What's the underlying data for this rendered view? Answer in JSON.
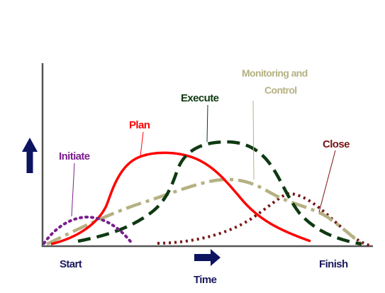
{
  "labels": {
    "initiate": "Initiate",
    "plan": "Plan",
    "execute": "Execute",
    "monitoring_line1": "Monitoring and",
    "monitoring_line2": "Control",
    "close": "Close",
    "start": "Start",
    "time": "Time",
    "finish": "Finish"
  },
  "colors": {
    "initiate": "#7a1f8c",
    "plan": "#ff0000",
    "execute": "#0f3a12",
    "monitoring": "#b5b183",
    "close": "#7a1414",
    "axis_text": "#1a1a5e",
    "arrow": "#0d1460",
    "axis": "#555555"
  },
  "icons": {
    "vertical_arrow": "up-arrow-icon",
    "time_arrow": "right-arrow-icon"
  }
}
